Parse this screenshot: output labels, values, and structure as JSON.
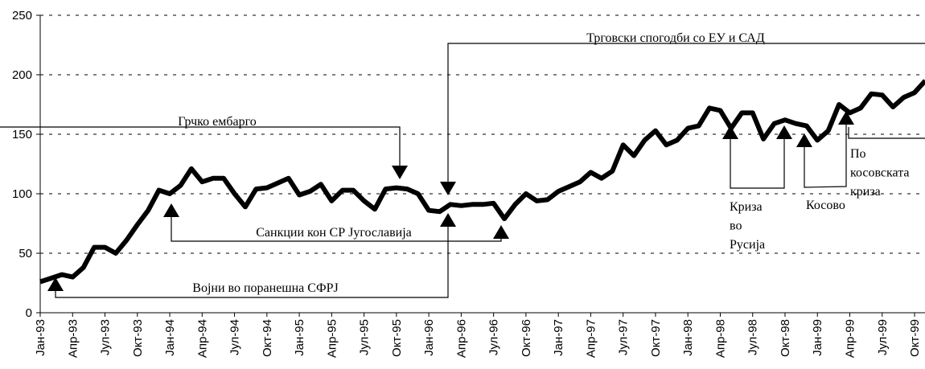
{
  "chart_data": {
    "type": "line",
    "categories": [
      "Јан-93",
      null,
      null,
      "Апр-93",
      null,
      null,
      "Јул-93",
      null,
      null,
      "Окт-93",
      null,
      null,
      "Јан-94",
      null,
      null,
      "Апр-94",
      null,
      null,
      "Јул-94",
      null,
      null,
      "Окт-94",
      null,
      null,
      "Јан-95",
      null,
      null,
      "Апр-95",
      null,
      null,
      "Јул-95",
      null,
      null,
      "Окт-95",
      null,
      null,
      "Јан-96",
      null,
      null,
      "Апр-96",
      null,
      null,
      "Јул-96",
      null,
      null,
      "Окт-96",
      null,
      null,
      "Јан-97",
      null,
      null,
      "Апр-97",
      null,
      null,
      "Јул-97",
      null,
      null,
      "Окт-97",
      null,
      null,
      "Јан-98",
      null,
      null,
      "Апр-98",
      null,
      null,
      "Јул-98",
      null,
      null,
      "Окт-98",
      null,
      null,
      "Јан-99",
      null,
      null,
      "Апр-99",
      null,
      null,
      "Јул-99",
      null,
      null,
      "Окт-99",
      null
    ],
    "values": [
      26,
      29,
      32,
      30,
      38,
      55,
      55,
      50,
      61,
      74,
      86,
      103,
      100,
      107,
      121,
      110,
      113,
      113,
      100,
      89,
      104,
      105,
      109,
      113,
      99,
      102,
      108,
      94,
      103,
      103,
      94,
      87,
      104,
      105,
      104,
      100,
      86,
      85,
      91,
      90,
      91,
      91,
      92,
      79,
      91,
      100,
      94,
      95,
      102,
      106,
      110,
      118,
      113,
      119,
      141,
      132,
      145,
      153,
      141,
      145,
      155,
      157,
      172,
      170,
      155,
      168,
      168,
      146,
      159,
      162,
      159,
      157,
      145,
      153,
      175,
      168,
      172,
      184,
      183,
      173,
      181,
      185,
      195
    ],
    "color": "#000000",
    "ylim": [
      0,
      250
    ],
    "yticks": [
      0,
      50,
      100,
      150,
      200,
      250
    ],
    "grid": true,
    "annotations": [
      {
        "lines": [
          "Грчко ембарго"
        ]
      },
      {
        "lines": [
          "Трговски спогодби со ЕУ и САД"
        ]
      },
      {
        "lines": [
          "Санкции кон СР Југославија"
        ]
      },
      {
        "lines": [
          "Војни во поранешна СФРЈ"
        ]
      },
      {
        "lines": [
          "Криза",
          "во",
          "Русија"
        ]
      },
      {
        "lines": [
          "Косово"
        ]
      },
      {
        "lines": [
          "По",
          "косовската",
          "криза"
        ]
      }
    ]
  }
}
